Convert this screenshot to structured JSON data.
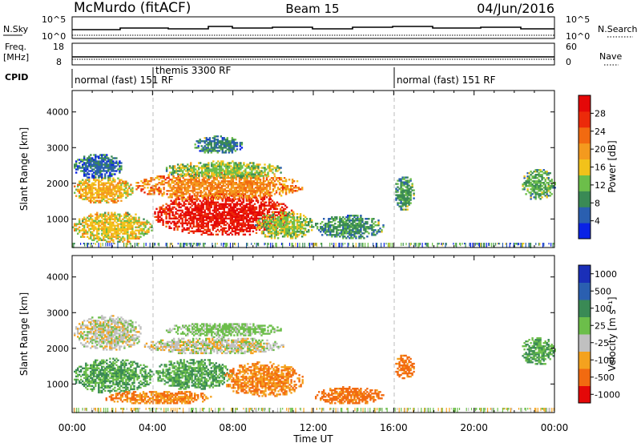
{
  "header": {
    "radar": "McMurdo (fitACF)",
    "beam": "Beam 15",
    "date": "04/Jun/2016"
  },
  "aux_panels": {
    "nsky": {
      "label": "N.Sky",
      "ticks": [
        "10^5",
        "10^0"
      ]
    },
    "nsearch": {
      "label": "N.Search",
      "ticks": [
        "10^5",
        "10^0"
      ]
    },
    "freq": {
      "label_line1": "Freq.",
      "label_line2": "[MHz]",
      "ticks": [
        "18",
        "8"
      ]
    },
    "nave": {
      "label": "Nave",
      "ticks": [
        "60",
        "0"
      ]
    },
    "cpid": {
      "label": "CPID",
      "segments": [
        {
          "name": "normal (fast) 151 RF",
          "start_hour": 0,
          "end_hour": 4
        },
        {
          "name": "themis 3300 RF",
          "start_hour": 4,
          "end_hour": 16
        },
        {
          "name": "normal (fast) 151 RF",
          "start_hour": 16,
          "end_hour": 24
        }
      ]
    }
  },
  "colors": {
    "power_scale": [
      "#0a22e6",
      "#2a5fb0",
      "#3a8a55",
      "#6cbe4a",
      "#f2c21a",
      "#f49a1e",
      "#f26a10",
      "#ec2a0a",
      "#e40808"
    ],
    "velocity_scale": [
      "#e40808",
      "#f26a10",
      "#f4a21e",
      "#c0c0c0",
      "#6cbe4a",
      "#3a8a55",
      "#2a5fb0",
      "#1a2fb8"
    ],
    "ground_scatter": "#bfbfbf"
  },
  "chart_data": [
    {
      "type": "heatmap",
      "name": "power",
      "ylabel": "Slant Range [km]",
      "xlabel": "Time UT",
      "xlim": [
        0,
        24
      ],
      "ylim": [
        200,
        4600
      ],
      "x_ticks": [
        "00:00",
        "04:00",
        "08:00",
        "12:00",
        "16:00",
        "20:00",
        "00:00"
      ],
      "y_ticks": [
        1000,
        2000,
        3000,
        4000
      ],
      "colorbar": {
        "label": "Power [dB]",
        "range": [
          0,
          32
        ],
        "ticks": [
          "28",
          "24",
          "20",
          "16",
          "12",
          "8",
          "4"
        ]
      },
      "regions": [
        {
          "t0": 0.0,
          "t1": 4.0,
          "r0": 300,
          "r1": 1200,
          "level": 16
        },
        {
          "t0": 0.0,
          "t1": 3.0,
          "r0": 1400,
          "r1": 2200,
          "level": 18
        },
        {
          "t0": 0.0,
          "t1": 2.5,
          "r0": 2100,
          "r1": 2800,
          "level": 6
        },
        {
          "t0": 4.0,
          "t1": 11.0,
          "r0": 500,
          "r1": 1700,
          "level": 29
        },
        {
          "t0": 3.0,
          "t1": 11.5,
          "r0": 1500,
          "r1": 2300,
          "level": 21
        },
        {
          "t0": 4.5,
          "t1": 10.5,
          "r0": 2100,
          "r1": 2600,
          "level": 13
        },
        {
          "t0": 9.0,
          "t1": 12.0,
          "r0": 400,
          "r1": 1200,
          "level": 13
        },
        {
          "t0": 12.0,
          "t1": 15.5,
          "r0": 400,
          "r1": 1100,
          "level": 9
        },
        {
          "t0": 16.0,
          "t1": 17.0,
          "r0": 1200,
          "r1": 2200,
          "level": 10
        },
        {
          "t0": 22.3,
          "t1": 24.0,
          "r0": 1500,
          "r1": 2400,
          "level": 11
        },
        {
          "t0": 6.0,
          "t1": 8.5,
          "r0": 2800,
          "r1": 3300,
          "level": 8
        }
      ]
    },
    {
      "type": "heatmap",
      "name": "velocity",
      "ylabel": "Slant Range [km]",
      "xlabel": "Time UT",
      "xlim": [
        0,
        24
      ],
      "ylim": [
        200,
        4600
      ],
      "x_ticks": [
        "00:00",
        "04:00",
        "08:00",
        "12:00",
        "16:00",
        "20:00",
        "00:00"
      ],
      "y_ticks": [
        1000,
        2000,
        3000,
        4000
      ],
      "colorbar": {
        "label": "Velocity [m s⁻¹]",
        "ticks": [
          "1000",
          "500",
          "100",
          "25",
          "-25",
          "-100",
          "-500",
          "-1000"
        ]
      },
      "regions": [
        {
          "t0": 0.0,
          "t1": 4.0,
          "r0": 700,
          "r1": 1700,
          "level": 100
        },
        {
          "t0": 4.0,
          "t1": 8.0,
          "r0": 800,
          "r1": 1700,
          "level": 100
        },
        {
          "t0": 7.5,
          "t1": 11.5,
          "r0": 600,
          "r1": 1600,
          "level": -100
        },
        {
          "t0": 0.0,
          "t1": 3.5,
          "r0": 1900,
          "r1": 2900,
          "level": 0
        },
        {
          "t0": 3.5,
          "t1": 10.5,
          "r0": 1800,
          "r1": 2300,
          "level": 0
        },
        {
          "t0": 4.5,
          "t1": 10.5,
          "r0": 2300,
          "r1": 2700,
          "level": 50
        },
        {
          "t0": 1.5,
          "t1": 7.0,
          "r0": 400,
          "r1": 800,
          "level": -100
        },
        {
          "t0": 12.0,
          "t1": 15.5,
          "r0": 400,
          "r1": 900,
          "level": -200
        },
        {
          "t0": 16.0,
          "t1": 17.0,
          "r0": 1100,
          "r1": 1800,
          "level": -200
        },
        {
          "t0": 22.3,
          "t1": 24.0,
          "r0": 1500,
          "r1": 2300,
          "level": 100
        }
      ]
    }
  ]
}
